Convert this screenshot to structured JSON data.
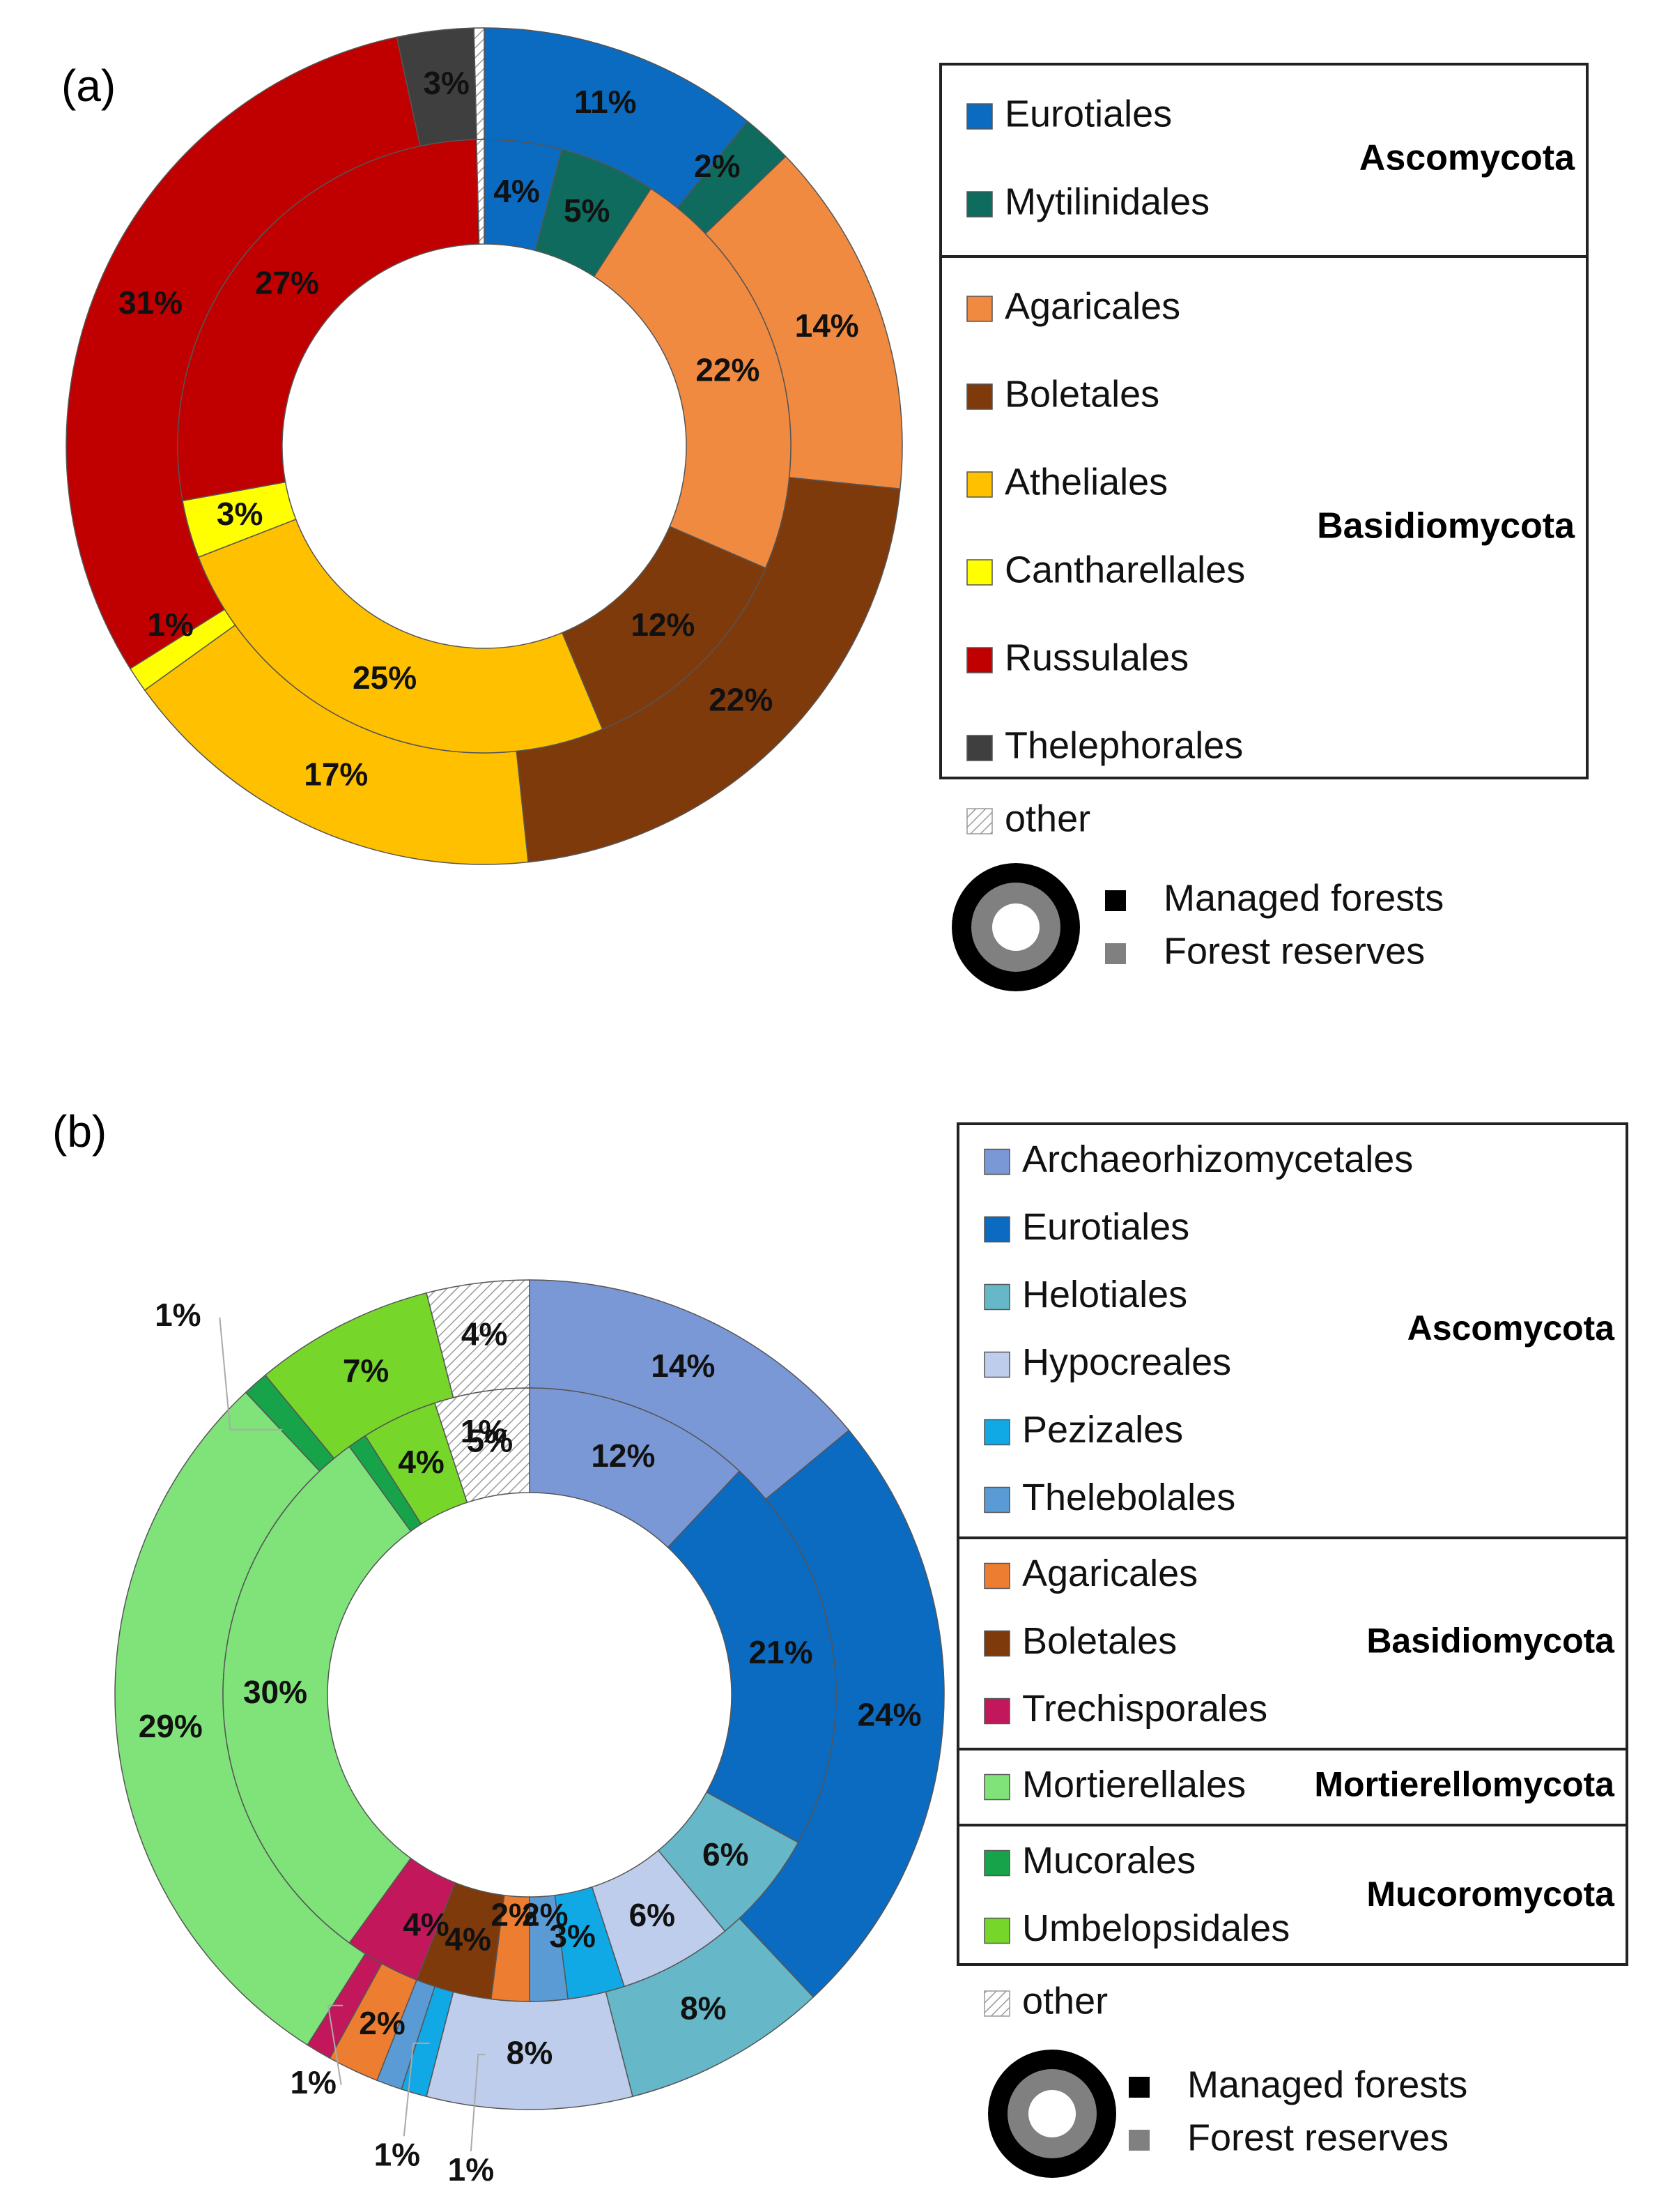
{
  "chart_data": [
    {
      "type": "pie",
      "variant": "double-donut",
      "panel_label": "(a)",
      "rings": [
        {
          "name": "Managed forests",
          "position": "outer"
        },
        {
          "name": "Forest reserves",
          "position": "inner"
        }
      ],
      "categories": [
        "Eurotiales",
        "Mytilinidales",
        "Agaricales",
        "Boletales",
        "Atheliales",
        "Cantharellales",
        "Russulales",
        "Thelephorales",
        "other"
      ],
      "colors": [
        "#0A6BC0",
        "#0E6B5D",
        "#F08A40",
        "#7F3A0C",
        "#FFC000",
        "#FFFF00",
        "#C00000",
        "#3F3F3F",
        "hatch"
      ],
      "outer": {
        "values": [
          11,
          2,
          14,
          22,
          17,
          1,
          31,
          3,
          0.4
        ],
        "labels": [
          "11%",
          "2%",
          "14%",
          "22%",
          "17%",
          "1%",
          "31%",
          "3%",
          ""
        ]
      },
      "inner": {
        "values": [
          4,
          5,
          22,
          12,
          25,
          3,
          27,
          0,
          0.4
        ],
        "labels": [
          "4%",
          "5%",
          "22%",
          "12%",
          "25%",
          "3%",
          "27%",
          "",
          ""
        ]
      },
      "legend": {
        "groups": [
          {
            "name": "Ascomycota",
            "items": [
              {
                "label": "Eurotiales",
                "color": "#0A6BC0"
              },
              {
                "label": "Mytilinidales",
                "color": "#0E6B5D"
              }
            ]
          },
          {
            "name": "Basidiomycota",
            "items": [
              {
                "label": "Agaricales",
                "color": "#F08A40"
              },
              {
                "label": "Boletales",
                "color": "#7F3A0C"
              },
              {
                "label": "Atheliales",
                "color": "#FFC000"
              },
              {
                "label": "Cantharellales",
                "color": "#FFFF00"
              },
              {
                "label": "Russulales",
                "color": "#C00000"
              },
              {
                "label": "Thelephorales",
                "color": "#3F3F3F"
              }
            ]
          }
        ],
        "other_label": "other",
        "ring_legend": [
          "Managed forests",
          "Forest reserves"
        ]
      }
    },
    {
      "type": "pie",
      "variant": "double-donut",
      "panel_label": "(b)",
      "rings": [
        {
          "name": "Managed forests",
          "position": "outer"
        },
        {
          "name": "Forest reserves",
          "position": "inner"
        }
      ],
      "categories": [
        "Archaeorhizomycetales",
        "Eurotiales",
        "Helotiales",
        "Hypocreales",
        "Pezizales",
        "Thelebolales",
        "Agaricales",
        "Boletales",
        "Trechisporales",
        "Mortierellales",
        "Mucorales",
        "Umbelopsidales",
        "other"
      ],
      "colors": [
        "#7B98D6",
        "#0A6BC0",
        "#66B8C8",
        "#BDCDEB",
        "#11A8E6",
        "#5B9BD5",
        "#ED7D31",
        "#7F3A0C",
        "#C2185B",
        "#7FE37A",
        "#16A34A",
        "#76D72A",
        "hatch"
      ],
      "outer": {
        "values": [
          14,
          24,
          8,
          8,
          1,
          1,
          2,
          0,
          1,
          29,
          1,
          7,
          4
        ],
        "labels": [
          "14%",
          "24%",
          "8%",
          "8%",
          "1%",
          "1%",
          "2%",
          "",
          "1%",
          "29%",
          "1%",
          "7%",
          "4%"
        ]
      },
      "inner": {
        "values": [
          12,
          21,
          6,
          6,
          3,
          2,
          2,
          4,
          4,
          30,
          1,
          4,
          5
        ],
        "labels": [
          "12%",
          "21%",
          "6%",
          "6%",
          "3%",
          "2%",
          "2%",
          "4%",
          "4%",
          "30%",
          "1%",
          "4%",
          "5%"
        ]
      },
      "legend": {
        "groups": [
          {
            "name": "Ascomycota",
            "items": [
              {
                "label": "Archaeorhizomycetales",
                "color": "#7B98D6"
              },
              {
                "label": "Eurotiales",
                "color": "#0A6BC0"
              },
              {
                "label": "Helotiales",
                "color": "#66B8C8"
              },
              {
                "label": "Hypocreales",
                "color": "#BDCDEB"
              },
              {
                "label": "Pezizales",
                "color": "#11A8E6"
              },
              {
                "label": "Thelebolales",
                "color": "#5B9BD5"
              }
            ]
          },
          {
            "name": "Basidiomycota",
            "items": [
              {
                "label": "Agaricales",
                "color": "#ED7D31"
              },
              {
                "label": "Boletales",
                "color": "#7F3A0C"
              },
              {
                "label": "Trechisporales",
                "color": "#C2185B"
              }
            ]
          },
          {
            "name": "Mortierellomycota",
            "items": [
              {
                "label": "Mortierellales",
                "color": "#7FE37A"
              }
            ]
          },
          {
            "name": "Mucoromycota",
            "items": [
              {
                "label": "Mucorales",
                "color": "#16A34A"
              },
              {
                "label": "Umbelopsidales",
                "color": "#76D72A"
              }
            ]
          }
        ],
        "other_label": "other",
        "ring_legend": [
          "Managed forests",
          "Forest reserves"
        ]
      }
    }
  ]
}
